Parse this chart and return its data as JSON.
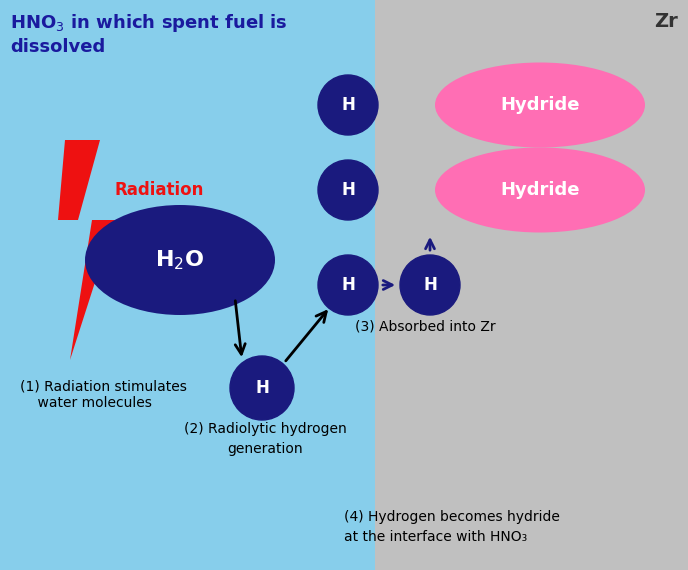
{
  "fig_width": 6.88,
  "fig_height": 5.7,
  "dpi": 100,
  "bg_left_color": "#87CEEB",
  "bg_right_color": "#C0C0C0",
  "dark_blue": "#1a1a7e",
  "pink": "#FF6EB4",
  "red": "#EE1111",
  "title_color": "#1a1a9e",
  "label1": "(1) Radiation stimulates\n    water molecules",
  "label2_line1": "(2) Radiolytic hydrogen",
  "label2_line2": "generation",
  "label3": "(3) Absorbed into Zr",
  "label4_line1": "(4) Hydrogen becomes hydride",
  "label4_line2": "at the interface with HNO₃",
  "zr_label": "Zr",
  "radiation_label": "Radiation"
}
